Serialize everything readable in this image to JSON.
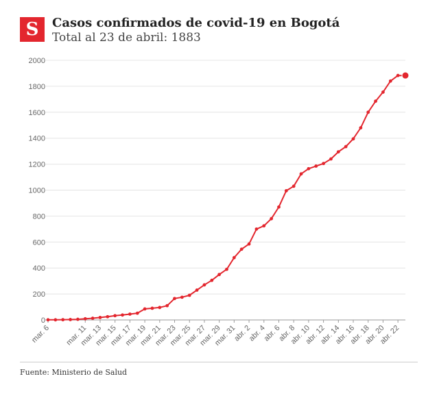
{
  "brand": {
    "logo_letter": "S",
    "accent": "#e3262e"
  },
  "header": {
    "title": "Casos confirmados de covid-19 en Bogotá",
    "subtitle": "Total al 23 de abril: 1883"
  },
  "footer": {
    "source": "Fuente: Ministerio de Salud"
  },
  "chart_data": {
    "type": "line",
    "title": "Casos confirmados de covid-19 en Bogotá",
    "subtitle": "Total al 23 de abril: 1883",
    "xlabel": "",
    "ylabel": "",
    "ylim": [
      0,
      2000
    ],
    "yticks": [
      0,
      200,
      400,
      600,
      800,
      1000,
      1200,
      1400,
      1600,
      1800,
      2000
    ],
    "grid": true,
    "line_color": "#e3262e",
    "x": [
      "mar. 6",
      "mar. 7",
      "mar. 8",
      "mar. 9",
      "mar. 10",
      "mar. 11",
      "mar. 12",
      "mar. 13",
      "mar. 14",
      "mar. 15",
      "mar. 16",
      "mar. 17",
      "mar. 18",
      "mar. 19",
      "mar. 20",
      "mar. 21",
      "mar. 22",
      "mar. 23",
      "mar. 24",
      "mar. 25",
      "mar. 26",
      "mar. 27",
      "mar. 28",
      "mar. 29",
      "mar. 30",
      "mar. 31",
      "abr. 1",
      "abr. 2",
      "abr. 3",
      "abr. 4",
      "abr. 5",
      "abr. 6",
      "abr. 7",
      "abr. 8",
      "abr. 9",
      "abr. 10",
      "abr. 11",
      "abr. 12",
      "abr. 13",
      "abr. 14",
      "abr. 15",
      "abr. 16",
      "abr. 17",
      "abr. 18",
      "abr. 19",
      "abr. 20",
      "abr. 21",
      "abr. 22",
      "abr. 23"
    ],
    "values": [
      1,
      1,
      2,
      3,
      5,
      9,
      13,
      19,
      25,
      33,
      38,
      45,
      52,
      85,
      90,
      96,
      110,
      165,
      175,
      190,
      230,
      270,
      305,
      350,
      390,
      480,
      545,
      585,
      700,
      725,
      780,
      870,
      995,
      1030,
      1125,
      1165,
      1185,
      1205,
      1240,
      1295,
      1335,
      1395,
      1480,
      1600,
      1685,
      1755,
      1840,
      1883,
      1883
    ],
    "tick_labels": [
      "mar. 6",
      "mar. 11",
      "mar. 13",
      "mar. 15",
      "mar. 17",
      "mar. 19",
      "mar. 21",
      "mar. 23",
      "mar. 25",
      "mar. 27",
      "mar. 29",
      "mar. 31",
      "abr. 2",
      "abr. 4",
      "abr. 6",
      "abr. 8",
      "abr. 10",
      "abr. 12",
      "abr. 14",
      "abr. 16",
      "abr. 18",
      "abr. 20",
      "abr. 22"
    ]
  }
}
